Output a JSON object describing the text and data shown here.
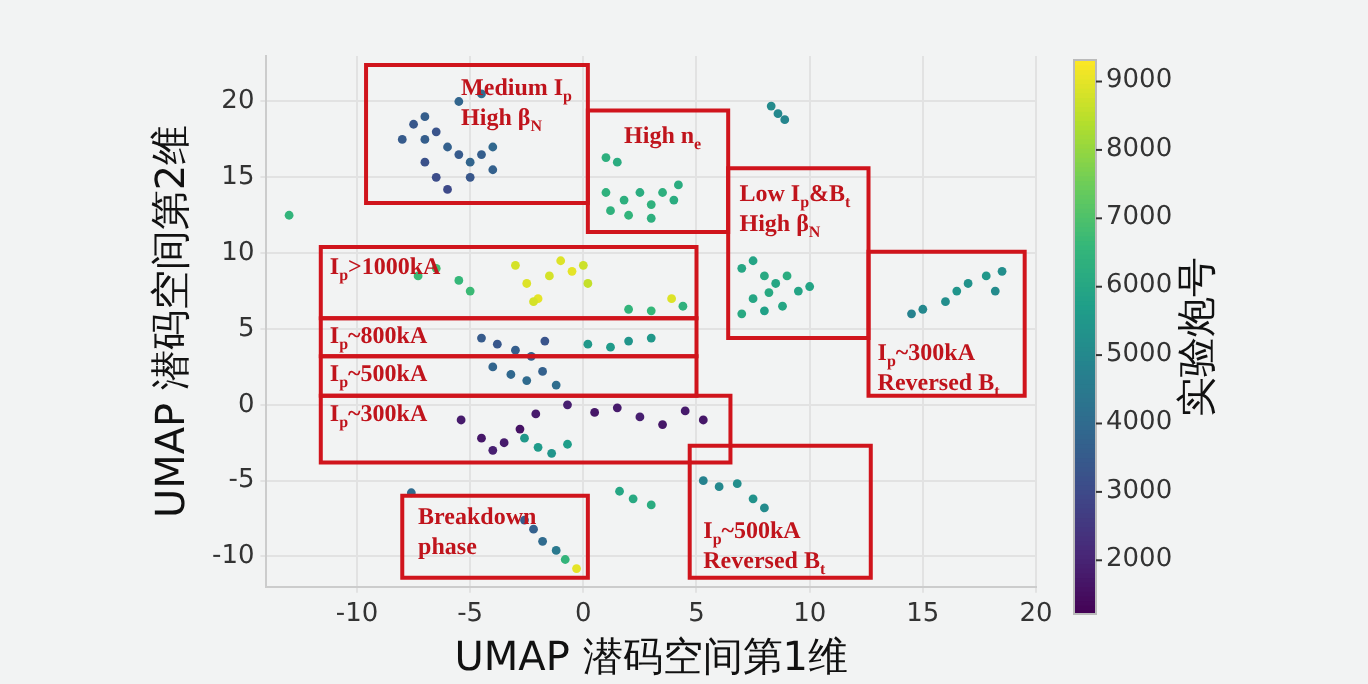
{
  "chart_data": {
    "type": "scatter",
    "xlabel": "UMAP 潜码空间第1维",
    "ylabel": "UMAP 潜码空间第2维",
    "clabel": "实验炮号",
    "xlim": [
      -14,
      20
    ],
    "xticks": [
      -10,
      -5,
      0,
      5,
      10,
      15,
      20
    ],
    "ylim": [
      -12,
      23
    ],
    "yticks": [
      -10,
      -5,
      0,
      5,
      10,
      15,
      20
    ],
    "clim": [
      1200,
      9300
    ],
    "cticks": [
      2000,
      3000,
      4000,
      5000,
      6000,
      7000,
      8000,
      9000
    ],
    "grid": true,
    "marker": "circle",
    "series": [
      {
        "x": [
          -8,
          -7.5,
          -7,
          -6.5,
          -6,
          -5.5,
          -5,
          -4.5,
          -4,
          -7,
          -6.5,
          -6,
          -5,
          -4,
          -5.5,
          -4.5,
          -7,
          -13,
          1,
          1.5,
          1,
          1.8,
          2.5,
          3,
          3.5,
          4,
          2,
          3,
          1.2,
          4.2,
          7,
          7.5,
          8,
          8.5,
          9,
          9.5,
          7.5,
          8,
          7,
          8.8,
          10,
          8.2,
          8.6,
          8.3,
          8.9,
          14.5,
          15,
          16,
          16.5,
          17,
          17.8,
          18.2,
          18.5,
          -7.3,
          -6.5,
          -5.5,
          -5,
          -3,
          -2.5,
          -2,
          -1.5,
          -1,
          -0.5,
          0,
          0.2,
          -2.2,
          2,
          3,
          4.4,
          3.9,
          -4.5,
          -3.8,
          -3,
          -2.3,
          -1.7,
          0.2,
          1.2,
          2,
          3,
          -4,
          -3.2,
          -2.5,
          -1.8,
          -1.2,
          -5.4,
          -4.5,
          -4,
          -3.5,
          -2.8,
          -2.1,
          -0.7,
          0.5,
          1.5,
          2.5,
          3.5,
          4.5,
          5.3,
          -2.6,
          -2,
          -1.4,
          -0.7,
          -2.6,
          -2.2,
          -1.8,
          -1.2,
          -0.8,
          -0.3,
          5.3,
          6,
          6.8,
          7.5,
          8,
          1.6,
          2.2,
          3,
          -7.6
        ],
        "values": [
          17.5,
          18.5,
          19,
          18,
          17,
          16.5,
          16,
          16.5,
          17,
          16,
          15,
          14.2,
          15,
          15.5,
          20,
          20.5,
          17.5,
          12.5,
          16.3,
          16,
          14,
          13.5,
          14,
          13.2,
          14,
          13.5,
          12.5,
          12.3,
          12.8,
          14.5,
          9,
          9.5,
          8.5,
          8,
          8.5,
          7.5,
          7,
          6.2,
          6,
          6.5,
          7.8,
          7.4,
          19.2,
          19.7,
          18.8,
          6,
          6.3,
          6.8,
          7.5,
          8,
          8.5,
          7.5,
          8.8,
          8.5,
          9,
          8.2,
          7.5,
          9.2,
          8,
          7,
          8.5,
          9.5,
          8.8,
          9.2,
          8,
          6.8,
          6.3,
          6.2,
          6.5,
          7,
          4.4,
          4,
          3.6,
          3.2,
          4.2,
          4,
          3.8,
          4.2,
          4.4,
          2.5,
          2,
          1.6,
          2.2,
          1.3,
          -1,
          -2.2,
          -3,
          -2.5,
          -1.6,
          -0.6,
          0,
          -0.5,
          -0.2,
          -0.8,
          -1.3,
          -0.4,
          -1,
          -2.2,
          -2.8,
          -3.2,
          -2.6,
          -7.6,
          -8.2,
          -9,
          -9.6,
          -10.2,
          -10.8,
          -5,
          -5.4,
          -5.2,
          -6.2,
          -6.8,
          -5.7,
          -6.2,
          -6.6,
          -5.8
        ],
        "cvalues": [
          3500,
          3400,
          3600,
          3300,
          3700,
          3500,
          3800,
          3600,
          3900,
          3200,
          3100,
          3000,
          3400,
          3700,
          3800,
          4000,
          3600,
          6500,
          6300,
          6200,
          6400,
          6300,
          6200,
          6400,
          6300,
          6200,
          6500,
          6300,
          6400,
          6200,
          6000,
          5900,
          6100,
          6000,
          6200,
          5900,
          6000,
          5800,
          6100,
          6000,
          5900,
          6100,
          5000,
          5100,
          4900,
          4800,
          5000,
          5200,
          5400,
          5300,
          5500,
          5100,
          5200,
          6700,
          6800,
          6600,
          6700,
          8800,
          8900,
          9000,
          8800,
          8900,
          9000,
          8700,
          8600,
          8800,
          6500,
          6600,
          6400,
          8900,
          3500,
          3400,
          3600,
          3700,
          3300,
          5500,
          5600,
          5400,
          5500,
          3800,
          3900,
          4000,
          3700,
          4100,
          1800,
          1700,
          1900,
          1800,
          1600,
          1800,
          1900,
          1700,
          1800,
          1900,
          1700,
          1800,
          1700,
          5500,
          5600,
          5400,
          5700,
          3500,
          3700,
          4000,
          4500,
          6500,
          9000,
          4800,
          5000,
          5200,
          5300,
          5100,
          6000,
          6100,
          6200,
          4000
        ]
      }
    ],
    "annotations": [
      "Medium I$_{p}$\nHigh β$_{N}$",
      "High n$_{e}$",
      "Low I$_{p}$&B$_{t}$\nHigh β$_{N}$",
      "I$_{p}$~300kA\nReversed B$_{t}$",
      "I$_{p}$>1000kA",
      "I$_{p}$~800kA",
      "I$_{p}$~500kA",
      "I$_{p}$~300kA",
      "Breakdown\nphase",
      "I$_{p}$~500kA\nReversed B$_{t}$"
    ]
  }
}
